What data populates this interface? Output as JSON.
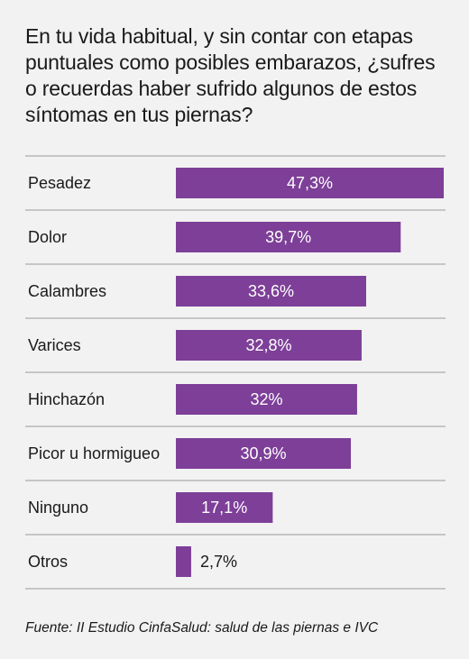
{
  "question": "En tu vida habitual, y sin contar con etapas puntuales como posibles embarazos, ¿sufres o recuerdas haber sufrido algunos de estos síntomas en tus piernas?",
  "source": "Fuente: II Estudio CinfaSalud: salud de las piernas e IVC",
  "colors": {
    "bar": "#7d3f98",
    "background": "#f2f2f2",
    "divider": "#9a9a9a"
  },
  "chart_data": {
    "type": "bar",
    "orientation": "horizontal",
    "categories": [
      "Pesadez",
      "Dolor",
      "Calambres",
      "Varices",
      "Hinchazón",
      "Picor u hormigueo",
      "Ninguno",
      "Otros"
    ],
    "values": [
      47.3,
      39.7,
      33.6,
      32.8,
      32,
      30.9,
      17.1,
      2.7
    ],
    "value_labels": [
      "47,3%",
      "39,7%",
      "33,6%",
      "32,8%",
      "32%",
      "30,9%",
      "17,1%",
      "2,7%"
    ],
    "xlim": [
      0,
      47.3
    ],
    "grid": false,
    "legend": "none"
  }
}
